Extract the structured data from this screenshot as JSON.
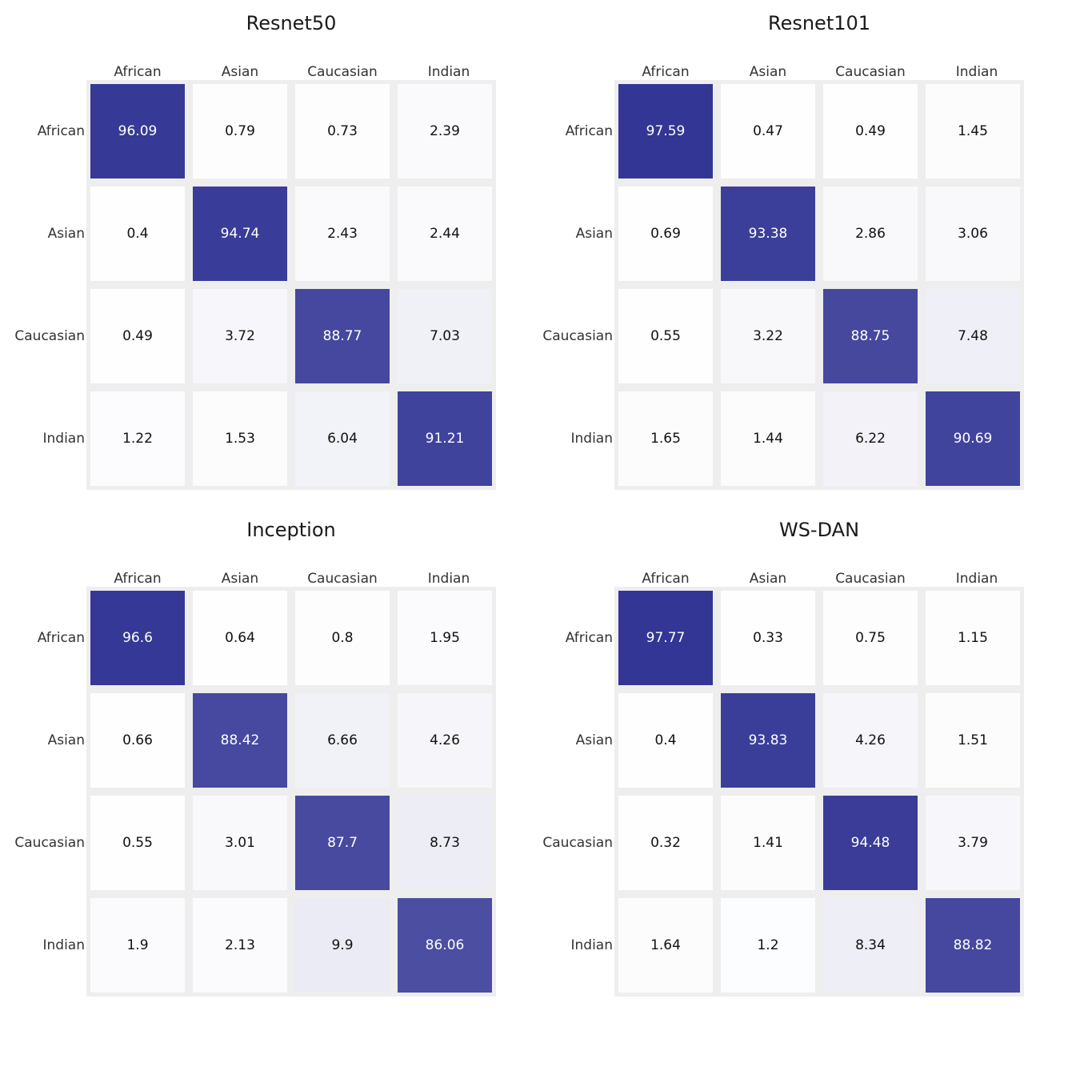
{
  "chart_data": [
    {
      "type": "heatmap",
      "title": "Resnet50",
      "x_labels": [
        "African",
        "Asian",
        "Caucasian",
        "Indian"
      ],
      "y_labels": [
        "African",
        "Asian",
        "Caucasian",
        "Indian"
      ],
      "value_labels": [
        [
          "96.09",
          "0.79",
          "0.73",
          "2.39"
        ],
        [
          "0.4",
          "94.74",
          "2.43",
          "2.44"
        ],
        [
          "0.49",
          "3.72",
          "88.77",
          "7.03"
        ],
        [
          "1.22",
          "1.53",
          "6.04",
          "91.21"
        ]
      ],
      "values": [
        [
          96.09,
          0.79,
          0.73,
          2.39
        ],
        [
          0.4,
          94.74,
          2.43,
          2.44
        ],
        [
          0.49,
          3.72,
          88.77,
          7.03
        ],
        [
          1.22,
          1.53,
          6.04,
          91.21
        ]
      ]
    },
    {
      "type": "heatmap",
      "title": "Resnet101",
      "x_labels": [
        "African",
        "Asian",
        "Caucasian",
        "Indian"
      ],
      "y_labels": [
        "African",
        "Asian",
        "Caucasian",
        "Indian"
      ],
      "value_labels": [
        [
          "97.59",
          "0.47",
          "0.49",
          "1.45"
        ],
        [
          "0.69",
          "93.38",
          "2.86",
          "3.06"
        ],
        [
          "0.55",
          "3.22",
          "88.75",
          "7.48"
        ],
        [
          "1.65",
          "1.44",
          "6.22",
          "90.69"
        ]
      ],
      "values": [
        [
          97.59,
          0.47,
          0.49,
          1.45
        ],
        [
          0.69,
          93.38,
          2.86,
          3.06
        ],
        [
          0.55,
          3.22,
          88.75,
          7.48
        ],
        [
          1.65,
          1.44,
          6.22,
          90.69
        ]
      ]
    },
    {
      "type": "heatmap",
      "title": "Inception",
      "x_labels": [
        "African",
        "Asian",
        "Caucasian",
        "Indian"
      ],
      "y_labels": [
        "African",
        "Asian",
        "Caucasian",
        "Indian"
      ],
      "value_labels": [
        [
          "96.6",
          "0.64",
          "0.8",
          "1.95"
        ],
        [
          "0.66",
          "88.42",
          "6.66",
          "4.26"
        ],
        [
          "0.55",
          "3.01",
          "87.7",
          "8.73"
        ],
        [
          "1.9",
          "2.13",
          "9.9",
          "86.06"
        ]
      ],
      "values": [
        [
          96.6,
          0.64,
          0.8,
          1.95
        ],
        [
          0.66,
          88.42,
          6.66,
          4.26
        ],
        [
          0.55,
          3.01,
          87.7,
          8.73
        ],
        [
          1.9,
          2.13,
          9.9,
          86.06
        ]
      ]
    },
    {
      "type": "heatmap",
      "title": "WS-DAN",
      "x_labels": [
        "African",
        "Asian",
        "Caucasian",
        "Indian"
      ],
      "y_labels": [
        "African",
        "Asian",
        "Caucasian",
        "Indian"
      ],
      "value_labels": [
        [
          "97.77",
          "0.33",
          "0.75",
          "1.15"
        ],
        [
          "0.4",
          "93.83",
          "4.26",
          "1.51"
        ],
        [
          "0.32",
          "1.41",
          "94.48",
          "3.79"
        ],
        [
          "1.64",
          "1.2",
          "8.34",
          "88.82"
        ]
      ],
      "values": [
        [
          97.77,
          0.33,
          0.75,
          1.15
        ],
        [
          0.4,
          93.83,
          4.26,
          1.51
        ],
        [
          0.32,
          1.41,
          94.48,
          3.79
        ],
        [
          1.64,
          1.2,
          8.34,
          88.82
        ]
      ]
    }
  ],
  "colors": {
    "low": "#ffffff",
    "high": "#2e3192",
    "frame": "#eeeeee",
    "text_dark": "#111111",
    "text_light": "#ffffff"
  }
}
